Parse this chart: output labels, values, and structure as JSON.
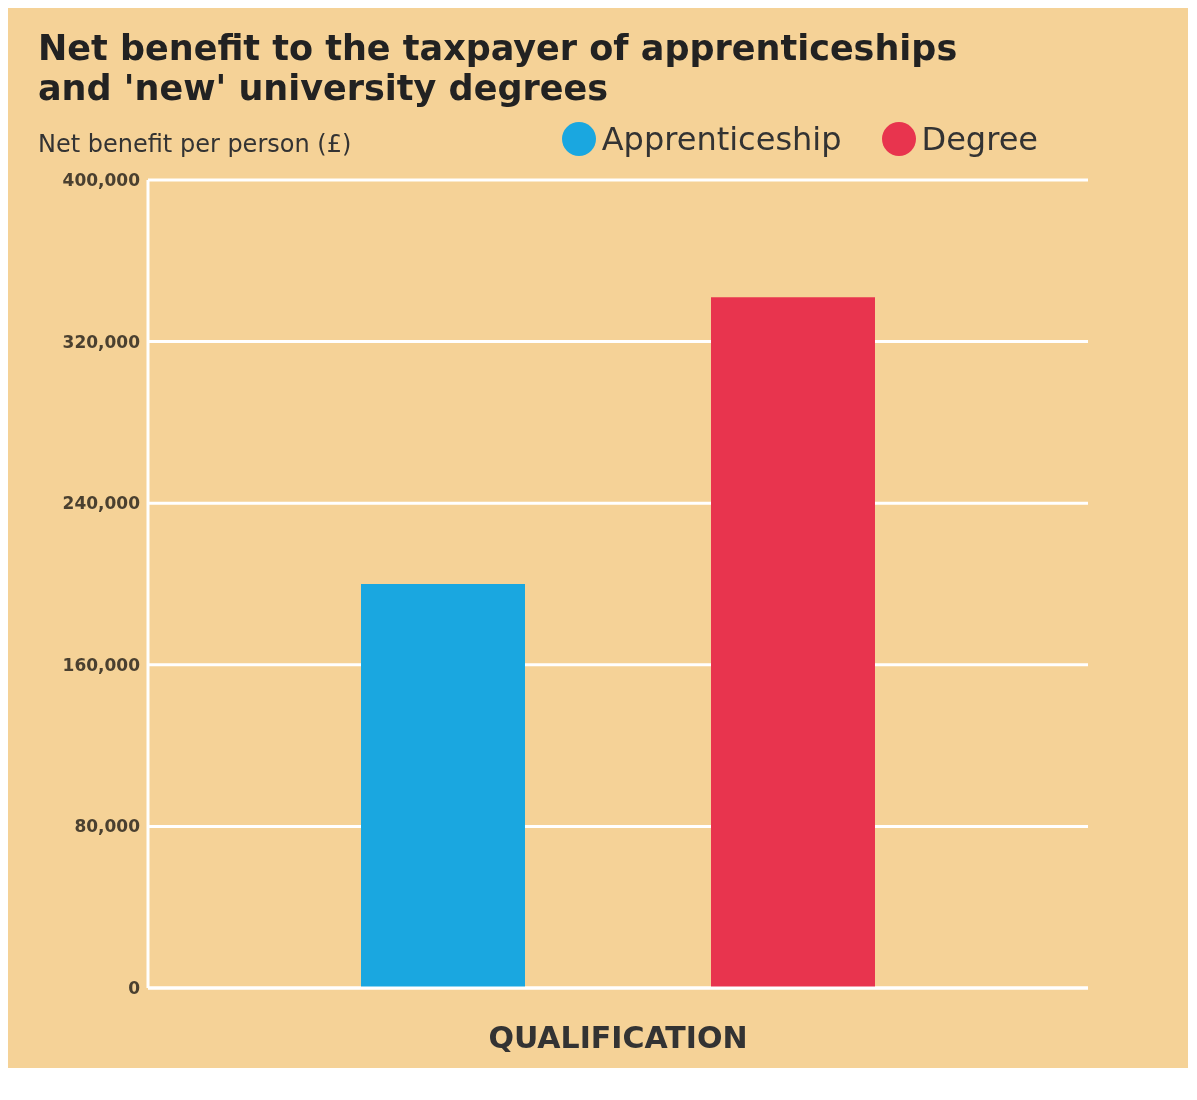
{
  "chart_data": {
    "type": "bar",
    "title": "Net benefit to the taxpayer of apprenticeships and 'new' university degrees",
    "ylabel": "Net benefit per person (£)",
    "xlabel": "QUALIFICATION",
    "categories": [
      null
    ],
    "series": [
      {
        "name": "Apprenticeship",
        "color": "#1aa7e0",
        "values": [
          200000
        ]
      },
      {
        "name": "Degree",
        "color": "#e8344e",
        "values": [
          342000
        ]
      }
    ],
    "ylim": [
      0,
      400000
    ],
    "yticks": [
      {
        "value": 0,
        "label": "0"
      },
      {
        "value": 80000,
        "label": "80,000"
      },
      {
        "value": 160000,
        "label": "160,000"
      },
      {
        "value": 240000,
        "label": "240,000"
      },
      {
        "value": 320000,
        "label": "320,000"
      },
      {
        "value": 400000,
        "label": "400,000"
      }
    ],
    "grid": "y",
    "legend": "top right"
  }
}
